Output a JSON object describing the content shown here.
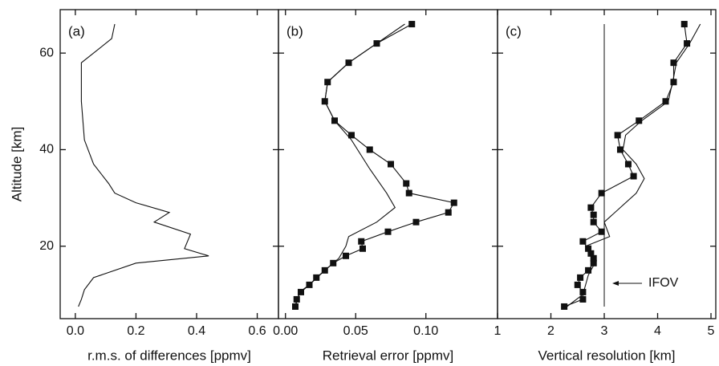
{
  "chart_data": [
    {
      "type": "line",
      "title": "(a)",
      "xlabel": "r.m.s. of differences [ppmv]",
      "ylabel": "Altitude [km]",
      "xlim": [
        -0.05,
        0.67
      ],
      "xticks": [
        {
          "value": 0,
          "label": "0.0"
        },
        {
          "value": 0.2,
          "label": "0.2"
        },
        {
          "value": 0.4,
          "label": "0.4"
        },
        {
          "value": 0.6,
          "label": "0.6"
        }
      ],
      "ylim": [
        5,
        69
      ],
      "yticks": [
        20,
        40,
        60
      ],
      "series": [
        {
          "color": "#111111",
          "marker": "none",
          "x": [
            0.01,
            0.02,
            0.03,
            0.06,
            0.2,
            0.44,
            0.36,
            0.38,
            0.26,
            0.31,
            0.2,
            0.13,
            0.11,
            0.06,
            0.03,
            0.02,
            0.02,
            0.12,
            0.13
          ],
          "values": [
            7.5,
            9,
            11,
            13.5,
            16.5,
            18,
            19.5,
            22.5,
            25,
            27,
            29,
            31,
            33,
            37,
            42,
            50,
            58,
            63,
            66
          ]
        }
      ]
    },
    {
      "type": "line",
      "title": "(b)",
      "xlabel": "Retrieval error [ppmv]",
      "xlim": [
        -0.005,
        0.151
      ],
      "xticks": [
        {
          "value": 0,
          "label": "0.00"
        },
        {
          "value": 0.05,
          "label": "0.05"
        },
        {
          "value": 0.1,
          "label": "0.10"
        }
      ],
      "ylim": [
        5,
        69
      ],
      "yticks": [
        20,
        40,
        60
      ],
      "series": [
        {
          "color": "#111111",
          "marker": "square",
          "x": [
            0.007,
            0.008,
            0.011,
            0.017,
            0.022,
            0.028,
            0.034,
            0.043,
            0.055,
            0.054,
            0.073,
            0.093,
            0.116,
            0.12,
            0.088,
            0.086,
            0.075,
            0.06,
            0.047,
            0.035,
            0.028,
            0.03,
            0.045,
            0.065,
            0.09
          ],
          "values": [
            7.5,
            9,
            10.5,
            12,
            13.5,
            15,
            16.5,
            18,
            19.5,
            21,
            23,
            25,
            27,
            29,
            31,
            33,
            37,
            40,
            43,
            46,
            50,
            54,
            58,
            62,
            66
          ]
        },
        {
          "color": "#111111",
          "marker": "none",
          "x": [
            0.007,
            0.01,
            0.017,
            0.028,
            0.038,
            0.043,
            0.045,
            0.065,
            0.078,
            0.072,
            0.06,
            0.047,
            0.035,
            0.028,
            0.03,
            0.045,
            0.065,
            0.085
          ],
          "values": [
            7.5,
            10.5,
            12,
            15,
            17.5,
            20,
            22,
            25,
            28,
            31,
            36,
            42,
            46,
            50,
            54,
            58,
            62,
            66
          ]
        }
      ]
    },
    {
      "type": "line",
      "title": "(c)",
      "xlabel": "Vertical resolution [km]",
      "annotation": "IFOV",
      "ifov_x": 3,
      "xlim": [
        1,
        5.09
      ],
      "xticks": [
        1,
        2,
        3,
        4,
        5
      ],
      "ylim": [
        5,
        69
      ],
      "yticks": [
        20,
        40,
        60
      ],
      "series": [
        {
          "color": "#111111",
          "marker": "square",
          "x": [
            2.25,
            2.6,
            2.6,
            2.5,
            2.55,
            2.7,
            2.8,
            2.8,
            2.75,
            2.7,
            2.6,
            2.95,
            2.8,
            2.8,
            2.75,
            2.95,
            3.55,
            3.45,
            3.3,
            3.25,
            3.65,
            4.15,
            4.3,
            4.3,
            4.55,
            4.5
          ],
          "values": [
            7.5,
            9,
            10.5,
            12,
            13.5,
            15,
            16.5,
            17.5,
            18.5,
            19.5,
            21,
            23,
            25,
            26.5,
            28,
            31,
            34.5,
            37,
            40,
            43,
            46,
            50,
            54,
            58,
            62,
            66
          ]
        },
        {
          "color": "#111111",
          "marker": "none",
          "x": [
            2.3,
            2.6,
            2.7,
            2.85,
            2.65,
            3.1,
            3,
            3.3,
            3.6,
            3.75,
            3.6,
            3.35,
            3.4,
            3.7,
            4.2,
            4.3,
            4.35,
            4.6,
            4.8
          ],
          "values": [
            7.5,
            10,
            14,
            17,
            20,
            22,
            25,
            28,
            31,
            34,
            37,
            40,
            43,
            46,
            50,
            55,
            58,
            62,
            66
          ]
        }
      ]
    }
  ]
}
